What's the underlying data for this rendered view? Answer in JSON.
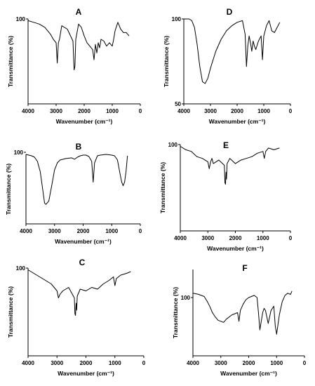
{
  "figure": {
    "xlabel": "Wavenumber (cm⁻¹)",
    "ylabel": "Transmittance (%)",
    "x_ticks": [
      "4000",
      "3000",
      "2000",
      "1000",
      "0"
    ]
  },
  "chart_data": [
    {
      "type": "line",
      "title": "A",
      "xlabel": "Wavenumber (cm⁻¹)",
      "ylabel": "Transmittance (%)",
      "xlim": [
        4000,
        0
      ],
      "ylim": [
        50,
        100
      ],
      "y_tick_labels": [
        "100"
      ],
      "series": [
        {
          "x": [
            4000,
            3800,
            3600,
            3400,
            3200,
            3100,
            3000,
            2960,
            2920,
            2880,
            2800,
            2600,
            2400,
            2360,
            2330,
            2300,
            2200,
            2100,
            2000,
            1900,
            1800,
            1700,
            1650,
            1600,
            1550,
            1500,
            1450,
            1400,
            1300,
            1200,
            1100,
            1000,
            950,
            900,
            800,
            700,
            600,
            500,
            400
          ],
          "y": [
            99,
            98,
            97,
            95,
            91,
            88,
            86,
            74,
            86,
            88,
            96,
            94,
            87,
            70,
            72,
            88,
            97,
            95,
            90,
            86,
            84,
            82,
            76,
            85,
            80,
            86,
            83,
            88,
            87,
            84,
            86,
            84,
            88,
            93,
            98,
            94,
            92,
            92,
            90
          ]
        }
      ]
    },
    {
      "type": "line",
      "title": "D",
      "xlabel": "Wavenumber (cm⁻¹)",
      "ylabel": "Transmittance (%)",
      "xlim": [
        4000,
        0
      ],
      "ylim": [
        50,
        100
      ],
      "y_tick_labels": [
        "100",
        "50"
      ],
      "series": [
        {
          "x": [
            4000,
            3900,
            3800,
            3700,
            3600,
            3500,
            3400,
            3300,
            3200,
            3100,
            3000,
            2800,
            2600,
            2400,
            2200,
            2000,
            1800,
            1700,
            1650,
            1600,
            1550,
            1500,
            1450,
            1400,
            1350,
            1300,
            1200,
            1100,
            1050,
            1000,
            900,
            800,
            700,
            600,
            500,
            400
          ],
          "y": [
            100,
            100,
            100,
            99,
            95,
            85,
            72,
            63,
            62,
            65,
            71,
            81,
            88,
            93,
            96,
            98,
            99,
            91,
            72,
            84,
            90,
            86,
            81,
            87,
            84,
            82,
            87,
            90,
            76,
            90,
            96,
            99,
            93,
            92,
            95,
            98
          ]
        }
      ]
    },
    {
      "type": "line",
      "title": "B",
      "xlabel": "Wavenumber (cm⁻¹)",
      "ylabel": "Transmittance (%)",
      "xlim": [
        4000,
        0
      ],
      "ylim": [
        0,
        100
      ],
      "y_tick_labels": [
        "100"
      ],
      "series": [
        {
          "x": [
            4000,
            3800,
            3700,
            3600,
            3500,
            3400,
            3350,
            3300,
            3200,
            3100,
            3000,
            2900,
            2800,
            2600,
            2400,
            2300,
            2200,
            2100,
            2000,
            1900,
            1800,
            1700,
            1650,
            1600,
            1500,
            1400,
            1200,
            1000,
            900,
            800,
            700,
            650,
            600,
            550,
            500,
            450
          ],
          "y": [
            100,
            98,
            96,
            90,
            75,
            45,
            30,
            28,
            33,
            55,
            78,
            88,
            92,
            94,
            95,
            93,
            96,
            98,
            99,
            99,
            97,
            90,
            60,
            88,
            98,
            99,
            100,
            99,
            98,
            92,
            70,
            60,
            55,
            60,
            75,
            98
          ]
        }
      ]
    },
    {
      "type": "line",
      "title": "E",
      "xlabel": "Wavenumber (cm⁻¹)",
      "ylabel": "Transmittance (%)",
      "xlim": [
        4000,
        0
      ],
      "ylim": [
        50,
        100
      ],
      "y_tick_labels": [
        "100"
      ],
      "series": [
        {
          "x": [
            4000,
            3800,
            3600,
            3400,
            3200,
            3000,
            2950,
            2900,
            2850,
            2800,
            2600,
            2400,
            2380,
            2360,
            2340,
            2320,
            2300,
            2200,
            2000,
            1800,
            1600,
            1400,
            1200,
            1000,
            950,
            900,
            800,
            600,
            400
          ],
          "y": [
            99,
            97,
            96,
            93,
            92,
            90,
            86,
            90,
            92,
            89,
            91,
            88,
            78,
            77,
            84,
            80,
            89,
            92,
            89,
            91,
            92,
            93,
            95,
            96,
            92,
            96,
            98,
            97,
            98
          ]
        }
      ]
    },
    {
      "type": "line",
      "title": "C",
      "xlabel": "Wavenumber (cm⁻¹)",
      "ylabel": "Transmittance (%)",
      "xlim": [
        4000,
        0
      ],
      "ylim": [
        50,
        100
      ],
      "y_tick_labels": [
        "100"
      ],
      "series": [
        {
          "x": [
            4000,
            3800,
            3600,
            3400,
            3200,
            3000,
            2950,
            2900,
            2850,
            2800,
            2600,
            2400,
            2380,
            2360,
            2340,
            2320,
            2300,
            2200,
            2000,
            1800,
            1600,
            1400,
            1200,
            1050,
            1000,
            950,
            800,
            600,
            450
          ],
          "y": [
            99,
            97,
            95,
            93,
            91,
            87,
            83,
            85,
            86,
            87,
            89,
            83,
            74,
            73,
            80,
            76,
            84,
            88,
            87,
            89,
            88,
            91,
            93,
            95,
            90,
            94,
            96,
            97,
            98
          ]
        }
      ]
    },
    {
      "type": "line",
      "title": "F",
      "xlabel": "Wavenumber (cm⁻¹)",
      "ylabel": "Transmittance (%)",
      "xlim": [
        4000,
        0
      ],
      "ylim": [
        40,
        120
      ],
      "y_tick_labels": [
        "100"
      ],
      "series": [
        {
          "x": [
            4000,
            3800,
            3600,
            3500,
            3400,
            3300,
            3200,
            3100,
            3000,
            2900,
            2800,
            2600,
            2400,
            2350,
            2300,
            2200,
            2100,
            2000,
            1900,
            1800,
            1700,
            1650,
            1600,
            1500,
            1450,
            1400,
            1300,
            1200,
            1100,
            1050,
            1000,
            900,
            800,
            700,
            600,
            500,
            450
          ],
          "y": [
            98,
            97,
            95,
            91,
            86,
            80,
            76,
            73,
            72,
            71,
            74,
            78,
            80,
            72,
            82,
            88,
            92,
            94,
            95,
            96,
            94,
            80,
            64,
            80,
            84,
            82,
            70,
            82,
            86,
            68,
            60,
            78,
            90,
            96,
            98,
            97,
            100
          ]
        }
      ]
    }
  ]
}
